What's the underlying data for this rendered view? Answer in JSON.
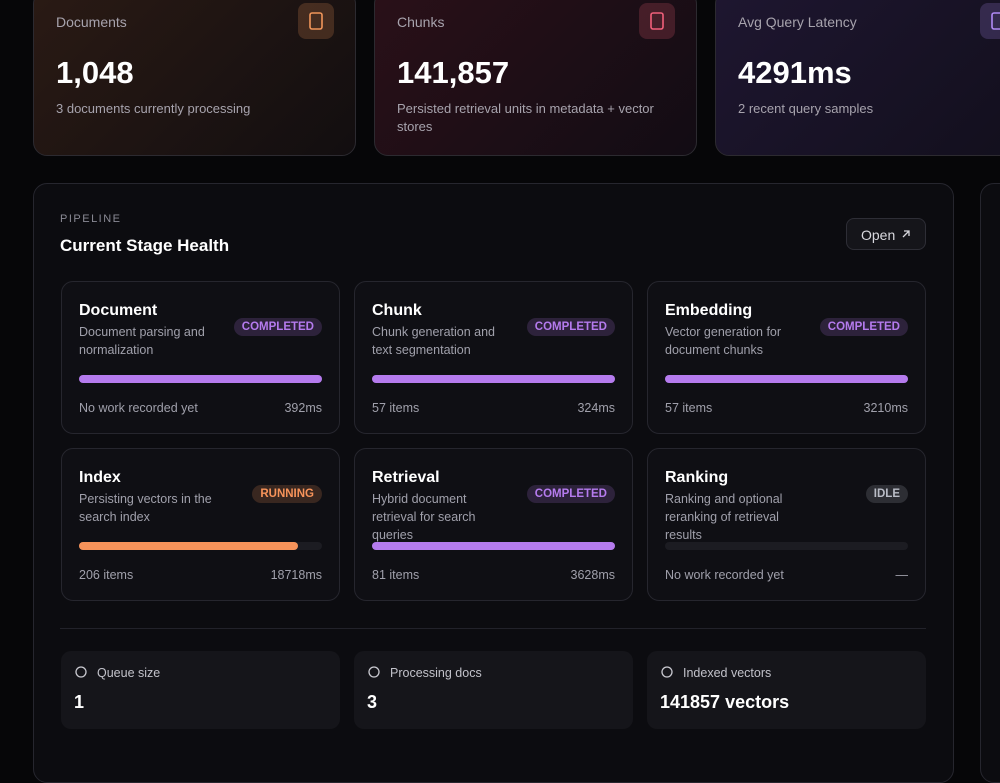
{
  "stats": [
    {
      "label": "Documents",
      "value": "1,048",
      "note": "3 documents currently processing",
      "color": "#f0955a"
    },
    {
      "label": "Chunks",
      "value": "141,857",
      "note": "Persisted retrieval units in metadata + vector stores",
      "color": "#f0607a"
    },
    {
      "label": "Avg Query Latency",
      "value": "4291ms",
      "note": "2 recent query samples",
      "color": "#b08af5"
    }
  ],
  "pipeline": {
    "eyebrow": "PIPELINE",
    "title": "Current Stage Health",
    "action": "Open",
    "stages": [
      {
        "name": "Document",
        "description": "Document parsing and normalization",
        "status": "COMPLETED",
        "progress": 100,
        "color": "#b57bee",
        "left": "No work recorded yet",
        "right": "392ms"
      },
      {
        "name": "Chunk",
        "description": "Chunk generation and text segmentation",
        "status": "COMPLETED",
        "progress": 100,
        "color": "#b57bee",
        "left": "57 items",
        "right": "324ms"
      },
      {
        "name": "Embedding",
        "description": "Vector generation for document chunks",
        "status": "COMPLETED",
        "progress": 100,
        "color": "#b57bee",
        "left": "57 items",
        "right": "3210ms"
      },
      {
        "name": "Index",
        "description": "Persisting vectors in the search index",
        "status": "RUNNING",
        "progress": 90,
        "color": "#f7935a",
        "left": "206 items",
        "right": "18718ms"
      },
      {
        "name": "Retrieval",
        "description": "Hybrid document retrieval for search queries",
        "status": "COMPLETED",
        "progress": 100,
        "color": "#b57bee",
        "left": "81 items",
        "right": "3628ms"
      },
      {
        "name": "Ranking",
        "description": "Ranking and optional reranking of retrieval results",
        "status": "IDLE",
        "progress": 0,
        "color": "#b9bcc6",
        "left": "No work recorded yet",
        "right": "—"
      }
    ],
    "metrics": [
      {
        "label": "Queue size",
        "value": "1"
      },
      {
        "label": "Processing docs",
        "value": "3"
      },
      {
        "label": "Indexed vectors",
        "value": "141857 vectors"
      }
    ]
  }
}
